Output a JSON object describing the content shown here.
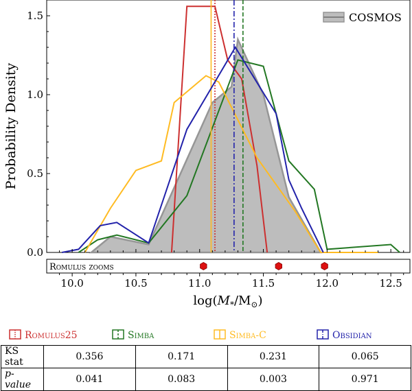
{
  "chart_data": {
    "type": "line",
    "xlabel": "log(M*/M⊙)",
    "ylabel": "Probability Density",
    "xlim": [
      9.8,
      12.65
    ],
    "ylim": [
      0,
      1.6
    ],
    "xticks": [
      "10.0",
      "10.5",
      "11.0",
      "11.5",
      "12.0",
      "12.5"
    ],
    "yticks": [
      "0.0",
      "0.5",
      "1.0",
      "1.5"
    ],
    "legend": {
      "position": "top-right",
      "label": "COSMOS"
    },
    "reference": {
      "name": "COSMOS",
      "type": "area",
      "color": "#bdbdbd",
      "edge": "#969696",
      "x": [
        10.15,
        10.3,
        10.6,
        11.1,
        11.25,
        11.3,
        11.5,
        11.7,
        11.95
      ],
      "y": [
        0.0,
        0.1,
        0.05,
        0.95,
        1.05,
        1.35,
        1.0,
        0.35,
        0.0
      ]
    },
    "series": [
      {
        "name": "Romulus25",
        "color": "#cc2f2f",
        "dash": "dotted",
        "x": [
          10.78,
          10.9,
          11.12,
          11.22,
          11.33,
          11.45,
          11.53
        ],
        "y": [
          0.0,
          1.56,
          1.56,
          1.22,
          1.1,
          0.55,
          0.0
        ],
        "median": 11.12
      },
      {
        "name": "Simba",
        "color": "#227722",
        "dash": "dashed",
        "x": [
          10.05,
          10.2,
          10.35,
          10.6,
          10.9,
          11.3,
          11.5,
          11.7,
          11.9,
          12.0,
          12.5,
          12.57
        ],
        "y": [
          0.0,
          0.08,
          0.11,
          0.06,
          0.36,
          1.22,
          1.18,
          0.58,
          0.4,
          0.02,
          0.05,
          0.0
        ],
        "median": 11.34
      },
      {
        "name": "Simba-C",
        "color": "#ffbb22",
        "dash": "solid",
        "x": [
          10.1,
          10.3,
          10.5,
          10.7,
          10.8,
          11.05,
          11.15,
          11.3,
          11.45,
          11.75,
          11.95,
          12.4
        ],
        "y": [
          0.0,
          0.28,
          0.52,
          0.58,
          0.95,
          1.12,
          1.08,
          0.84,
          0.6,
          0.26,
          0.0,
          0.0
        ],
        "median": 11.09
      },
      {
        "name": "Obsidian",
        "color": "#2222aa",
        "dash": "dashdot",
        "x": [
          9.92,
          10.05,
          10.22,
          10.35,
          10.6,
          10.9,
          11.28,
          11.6,
          11.7,
          11.8,
          11.97
        ],
        "y": [
          0.0,
          0.02,
          0.17,
          0.19,
          0.06,
          0.78,
          1.3,
          0.88,
          0.46,
          0.28,
          0.0
        ],
        "median": 11.27
      }
    ],
    "zooms": {
      "label": "Romulus zooms",
      "x": [
        11.03,
        11.62,
        11.98
      ],
      "color": "#dd1111"
    }
  },
  "table": {
    "headers": [
      "Romulus25",
      "Simba",
      "Simba-C",
      "Obsidian"
    ],
    "row_labels": [
      "KS stat",
      "p-value"
    ],
    "ks_stat": [
      "0.356",
      "0.171",
      "0.231",
      "0.065"
    ],
    "p_value": [
      "0.041",
      "0.083",
      "0.003",
      "0.971"
    ]
  }
}
